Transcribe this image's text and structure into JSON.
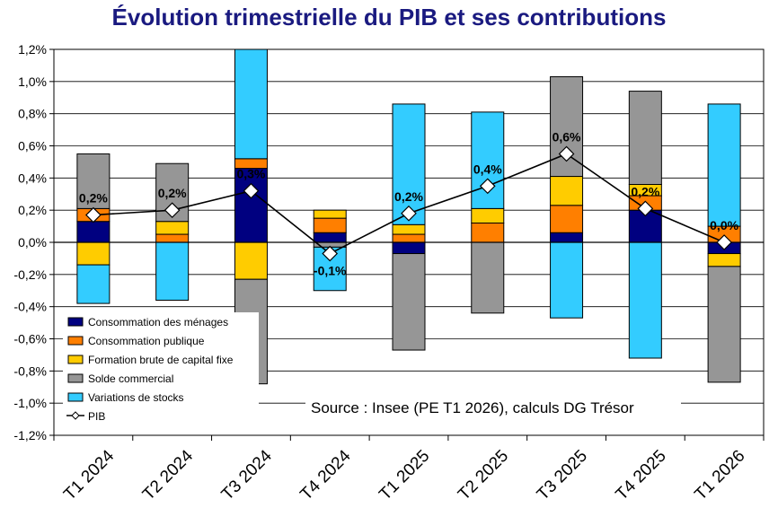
{
  "chart_data": {
    "type": "bar",
    "title": "Évolution trimestrielle du PIB et ses contributions",
    "source": "Source : Insee (PE T1 2026), calculs DG Trésor",
    "categories": [
      "T1 2024",
      "T2 2024",
      "T3 2024",
      "T4 2024",
      "T1 2025",
      "T2 2025",
      "T3 2025",
      "T4 2025",
      "T1 2026"
    ],
    "ylim": [
      -1.2,
      1.2
    ],
    "yticks": [
      1.2,
      1.0,
      0.8,
      0.6,
      0.4,
      0.2,
      0.0,
      -0.2,
      -0.4,
      -0.6,
      -0.8,
      -1.0,
      -1.2
    ],
    "ytick_labels": [
      "1,2%",
      "1,0%",
      "0,8%",
      "0,6%",
      "0,4%",
      "0,2%",
      "0,0%",
      "-0,2%",
      "-0,4%",
      "-0,6%",
      "-0,8%",
      "-1,0%",
      "-1,2%"
    ],
    "grid": true,
    "legend_position": "bottom-left",
    "series": [
      {
        "name": "Consommation des ménages",
        "color": "#000080",
        "values": [
          0.13,
          0.0,
          0.46,
          0.06,
          -0.07,
          0.0,
          0.06,
          0.2,
          -0.07
        ]
      },
      {
        "name": "Consommation publique",
        "color": "#ff7f00",
        "values": [
          0.08,
          0.05,
          0.06,
          0.09,
          0.05,
          0.12,
          0.17,
          0.09,
          0.1
        ]
      },
      {
        "name": "Formation brute de capital fixe",
        "color": "#ffcc00",
        "values": [
          -0.14,
          0.08,
          -0.23,
          0.05,
          0.06,
          0.09,
          0.18,
          0.07,
          -0.08
        ]
      },
      {
        "name": "Solde commercial",
        "color": "#969696",
        "values": [
          0.34,
          0.36,
          -0.65,
          -0.03,
          -0.6,
          -0.44,
          0.62,
          0.58,
          -0.72
        ]
      },
      {
        "name": "Variations de stocks",
        "color": "#33ccff",
        "values": [
          -0.24,
          -0.36,
          0.68,
          -0.27,
          0.75,
          0.6,
          -0.47,
          -0.72,
          0.76
        ]
      }
    ],
    "line": {
      "name": "PIB",
      "values": [
        0.17,
        0.2,
        0.32,
        -0.07,
        0.18,
        0.35,
        0.55,
        0.21,
        0.0
      ],
      "labels": [
        "0,2%",
        "0,2%",
        "0,3%",
        "-0,1%",
        "0,2%",
        "0,4%",
        "0,6%",
        "0,2%",
        "0,0%"
      ]
    }
  }
}
